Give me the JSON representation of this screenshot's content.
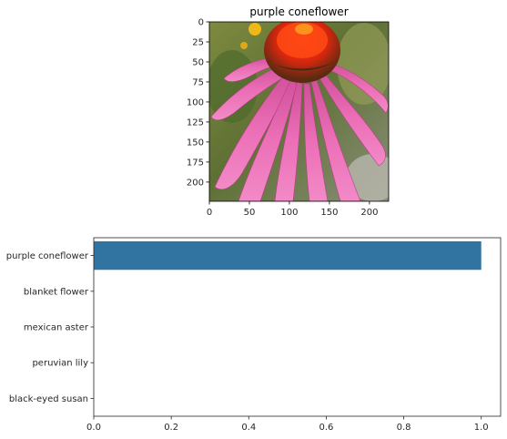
{
  "chart_data": [
    {
      "type": "image",
      "title": "purple coneflower",
      "xlim": [
        0,
        224
      ],
      "ylim": [
        224,
        0
      ],
      "xticks": [
        0,
        50,
        100,
        150,
        200
      ],
      "yticks": [
        0,
        25,
        50,
        75,
        100,
        125,
        150,
        175,
        200
      ],
      "image_subject": "purple coneflower"
    },
    {
      "type": "bar",
      "orientation": "horizontal",
      "categories": [
        "purple coneflower",
        "blanket flower",
        "mexican aster",
        "peruvian lily",
        "black-eyed susan"
      ],
      "values": [
        1.0,
        0.0,
        0.0,
        0.0,
        0.0
      ],
      "xlim": [
        0,
        1.05
      ],
      "xticks": [
        0.0,
        0.2,
        0.4,
        0.6,
        0.8,
        1.0
      ],
      "xtick_labels": [
        "0.0",
        "0.2",
        "0.4",
        "0.6",
        "0.8",
        "1.0"
      ],
      "bar_color": "#3274a1"
    }
  ]
}
